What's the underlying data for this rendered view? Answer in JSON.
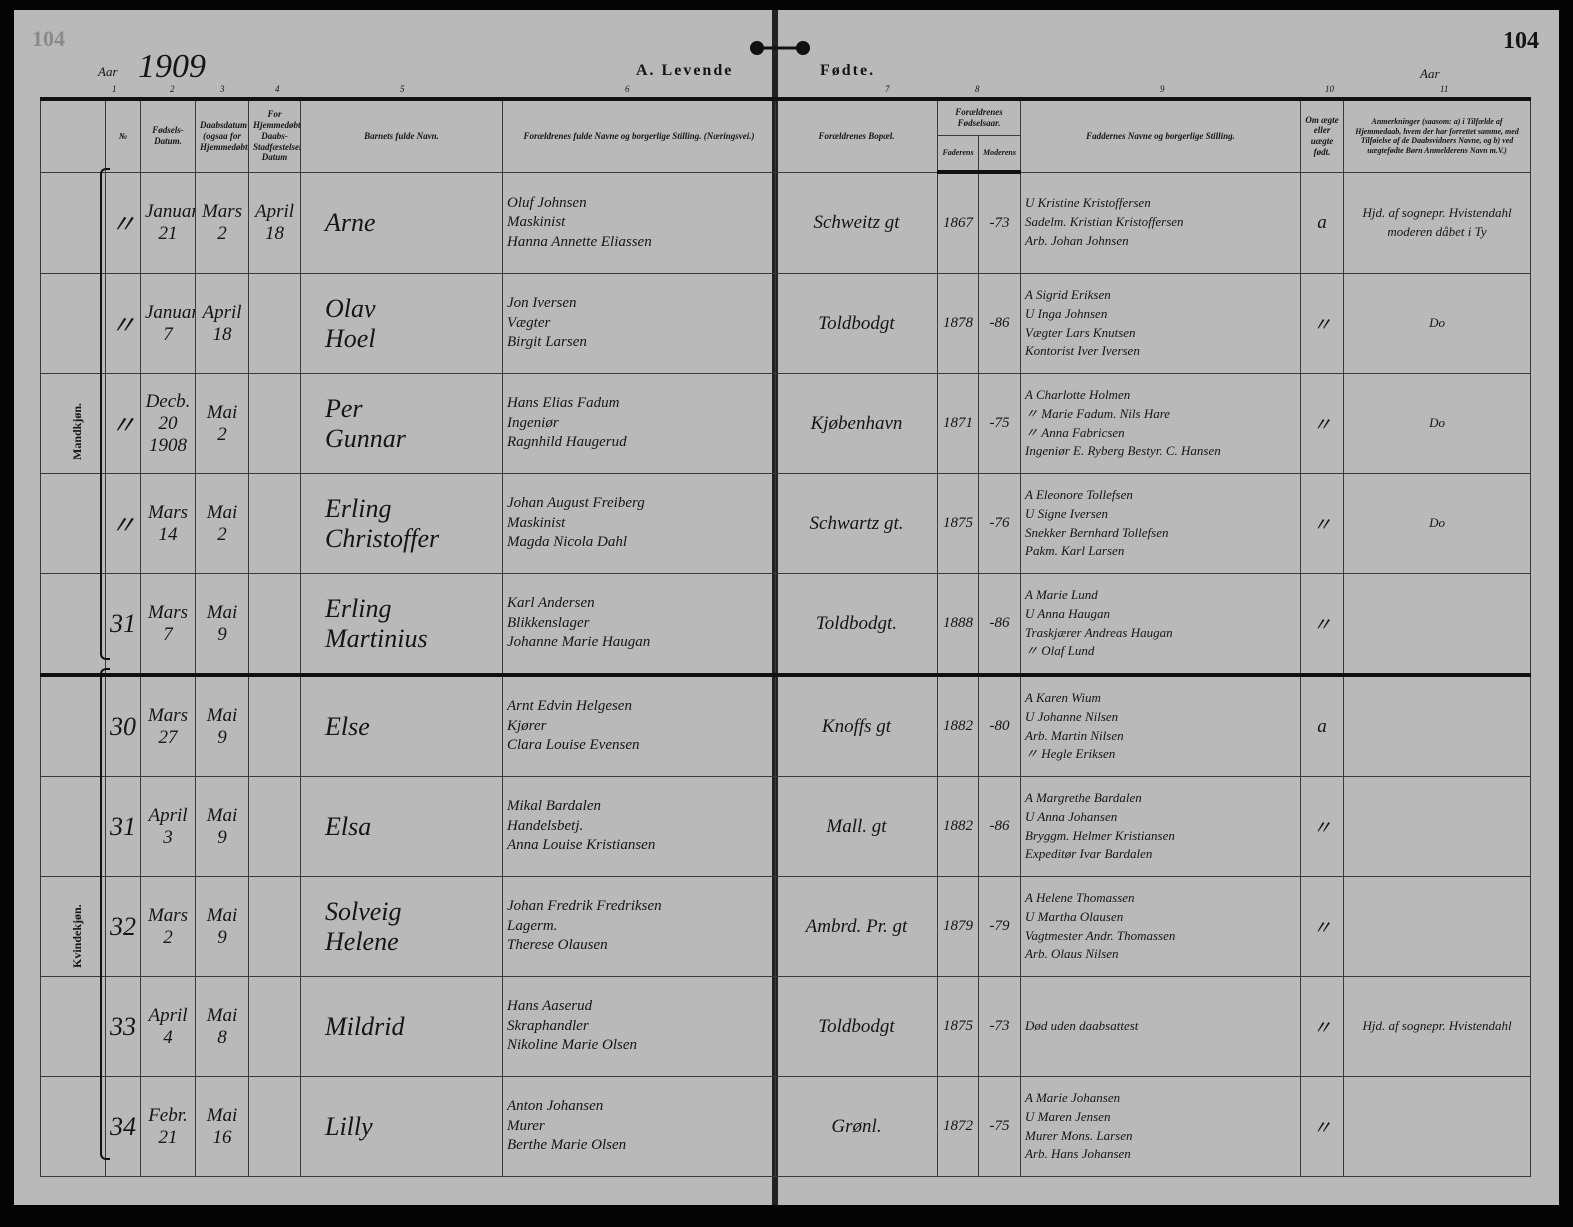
{
  "page": {
    "stamp": "104",
    "page_number": "104",
    "year_label_left": "Aar",
    "year": "1909",
    "year_label_right": "Aar",
    "title_left": "A. Levende",
    "title_right": "Fødte.",
    "column_numbers": [
      "1",
      "2",
      "3",
      "4",
      "5",
      "6",
      "7",
      "8",
      "9",
      "10",
      "11"
    ]
  },
  "headers": {
    "nr": "№",
    "birth_date": "Fødsels-Datum.",
    "baptism_date": "Daabsdatum (ogsaa for Hjemmedøbte)",
    "home_baptized": "For Hjemmedøbte: Daabs-Stadfæstelsens Datum",
    "child_name": "Barnets fulde Navn.",
    "parents": "Forældrenes fulde Navne og borgerlige Stilling. (Næringsvei.)",
    "residence": "Forældrenes Bopæl.",
    "birth_years": "Forældrenes Fødselsaar.",
    "father": "Faderens",
    "mother": "Moderens",
    "godparents": "Faddernes Navne og borgerlige Stilling.",
    "legitimate": "Om ægte eller uægte født.",
    "remarks": "Anmerkninger (saasom: a) i Tilfælde af Hjemmedaab, hvem der har forrettet samme, med Tilføielse af de Daabsvidners Navne, og b) ved uægtefødte Børn Anmelderens Navn m.V.)"
  },
  "groups": {
    "male": "Mandkjøn.",
    "female": "Kvindekjøn."
  },
  "rows": [
    {
      "nr": "〃",
      "born": [
        "Januar",
        "21"
      ],
      "baptized": [
        "Mars",
        "2"
      ],
      "home": [
        "April",
        "18"
      ],
      "name": [
        "Arne"
      ],
      "parents": [
        "Oluf Johnsen",
        "Maskinist",
        "Hanna Annette Eliassen"
      ],
      "residence": "Schweitz gt",
      "father_year": "1867",
      "mother_year": "-73",
      "godparents": [
        "U Kristine Kristoffersen",
        "Sadelm. Kristian Kristoffersen",
        "Arb. Johan Johnsen"
      ],
      "legit": "a",
      "remarks": "Hjd. af sognepr. Hvistendahl moderen dåbet i Ty"
    },
    {
      "nr": "〃",
      "born": [
        "Januar",
        "7"
      ],
      "baptized": [
        "April",
        "18"
      ],
      "home": [
        "",
        ""
      ],
      "name": [
        "Olav",
        "Hoel"
      ],
      "parents": [
        "Jon Iversen",
        "Vægter",
        "Birgit Larsen"
      ],
      "residence": "Toldbodgt",
      "father_year": "1878",
      "mother_year": "-86",
      "godparents": [
        "A Sigrid Eriksen",
        "U Inga Johnsen",
        "Vægter Lars Knutsen",
        "Kontorist Iver Iversen"
      ],
      "legit": "〃",
      "remarks": "Do"
    },
    {
      "nr": "〃",
      "born": [
        "Decb. 20",
        "1908"
      ],
      "baptized": [
        "Mai",
        "2"
      ],
      "home": [
        "",
        ""
      ],
      "name": [
        "Per",
        "Gunnar"
      ],
      "parents": [
        "Hans Elias Fadum",
        "Ingeniør",
        "Ragnhild Haugerud"
      ],
      "residence": "Kjøbenhavn",
      "father_year": "1871",
      "mother_year": "-75",
      "godparents": [
        "A Charlotte Holmen",
        "〃 Marie Fadum. Nils Hare",
        "〃 Anna Fabricsen",
        "Ingeniør E. Ryberg Bestyr. C. Hansen"
      ],
      "legit": "〃",
      "remarks": "Do"
    },
    {
      "nr": "〃",
      "born": [
        "Mars",
        "14"
      ],
      "baptized": [
        "Mai",
        "2"
      ],
      "home": [
        "",
        ""
      ],
      "name": [
        "Erling",
        "Christoffer"
      ],
      "parents": [
        "Johan August Freiberg",
        "Maskinist",
        "Magda Nicola Dahl"
      ],
      "residence": "Schwartz gt.",
      "father_year": "1875",
      "mother_year": "-76",
      "godparents": [
        "A Eleonore Tollefsen",
        "U Signe Iversen",
        "Snekker Bernhard Tollefsen",
        "Pakm. Karl Larsen"
      ],
      "legit": "〃",
      "remarks": "Do"
    },
    {
      "nr": "31",
      "born": [
        "Mars",
        "7"
      ],
      "baptized": [
        "Mai",
        "9"
      ],
      "home": [
        "",
        ""
      ],
      "name": [
        "Erling",
        "Martinius"
      ],
      "parents": [
        "Karl Andersen",
        "Blikkenslager",
        "Johanne Marie Haugan"
      ],
      "residence": "Toldbodgt.",
      "father_year": "1888",
      "mother_year": "-86",
      "godparents": [
        "A Marie Lund",
        "U Anna Haugan",
        "Traskjærer Andreas Haugan",
        "〃 Olaf Lund"
      ],
      "legit": "〃",
      "remarks": ""
    },
    {
      "nr": "30",
      "born": [
        "Mars",
        "27"
      ],
      "baptized": [
        "Mai",
        "9"
      ],
      "home": [
        "",
        ""
      ],
      "name": [
        "Else"
      ],
      "parents": [
        "Arnt Edvin Helgesen",
        "Kjører",
        "Clara Louise Evensen"
      ],
      "residence": "Knoffs gt",
      "father_year": "1882",
      "mother_year": "-80",
      "godparents": [
        "A Karen Wium",
        "U Johanne Nilsen",
        "Arb. Martin Nilsen",
        "〃 Hegle Eriksen"
      ],
      "legit": "a",
      "remarks": ""
    },
    {
      "nr": "31",
      "born": [
        "April",
        "3"
      ],
      "baptized": [
        "Mai",
        "9"
      ],
      "home": [
        "",
        ""
      ],
      "name": [
        "Elsa"
      ],
      "parents": [
        "Mikal Bardalen",
        "Handelsbetj.",
        "Anna Louise Kristiansen"
      ],
      "residence": "Mall. gt",
      "father_year": "1882",
      "mother_year": "-86",
      "godparents": [
        "A Margrethe Bardalen",
        "U Anna Johansen",
        "Bryggm. Helmer Kristiansen",
        "Expeditør Ivar Bardalen"
      ],
      "legit": "〃",
      "remarks": ""
    },
    {
      "nr": "32",
      "born": [
        "Mars",
        "2"
      ],
      "baptized": [
        "Mai",
        "9"
      ],
      "home": [
        "",
        ""
      ],
      "name": [
        "Solveig",
        "Helene"
      ],
      "parents": [
        "Johan Fredrik Fredriksen",
        "Lagerm.",
        "Therese Olausen"
      ],
      "residence": "Ambrd. Pr. gt",
      "father_year": "1879",
      "mother_year": "-79",
      "godparents": [
        "A Helene Thomassen",
        "U Martha Olausen",
        "Vagtmester Andr. Thomassen",
        "Arb. Olaus Nilsen"
      ],
      "legit": "〃",
      "remarks": ""
    },
    {
      "nr": "33",
      "born": [
        "April",
        "4"
      ],
      "baptized": [
        "Mai",
        "8"
      ],
      "home": [
        "",
        ""
      ],
      "name": [
        "Mildrid"
      ],
      "parents": [
        "Hans Aaserud",
        "Skraphandler",
        "Nikoline Marie Olsen"
      ],
      "residence": "Toldbodgt",
      "father_year": "1875",
      "mother_year": "-73",
      "godparents": [
        "Død uden daabsattest"
      ],
      "legit": "〃",
      "remarks": "Hjd. af sognepr. Hvistendahl"
    },
    {
      "nr": "34",
      "born": [
        "Febr.",
        "21"
      ],
      "baptized": [
        "Mai",
        "16"
      ],
      "home": [
        "",
        ""
      ],
      "name": [
        "Lilly"
      ],
      "parents": [
        "Anton Johansen",
        "Murer",
        "Berthe Marie Olsen"
      ],
      "residence": "Grønl.",
      "father_year": "1872",
      "mother_year": "-75",
      "godparents": [
        "A Marie Johansen",
        "U Maren Jensen",
        "Murer Mons. Larsen",
        "Arb. Hans Johansen"
      ],
      "legit": "〃",
      "remarks": ""
    }
  ]
}
